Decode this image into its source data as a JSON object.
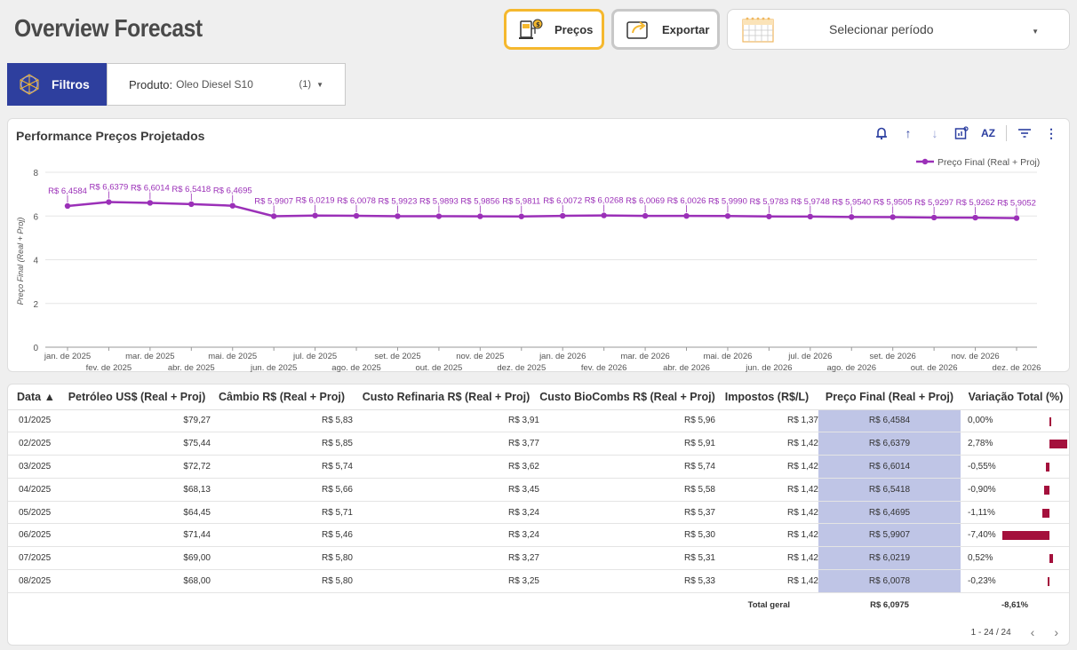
{
  "header": {
    "title": "Overview Forecast",
    "precos_label": "Preços",
    "exportar_label": "Exportar",
    "period_placeholder": "Selecionar período"
  },
  "filters": {
    "button_label": "Filtros",
    "product_label": "Produto:",
    "product_value": "Oleo Diesel S10",
    "product_count": "(1)"
  },
  "chart_card": {
    "title": "Performance Preços Projetados",
    "legend": "Preço Final (Real + Proj)"
  },
  "chart_data": {
    "type": "line",
    "title": "Performance Preços Projetados",
    "ylabel": "Preço Final (Real + Proj)",
    "ylim": [
      0,
      8
    ],
    "yticks": [
      0,
      2,
      4,
      6,
      8
    ],
    "x_top": [
      "jan. de 2025",
      "mar. de 2025",
      "mai. de 2025",
      "jul. de 2025",
      "set. de 2025",
      "nov. de 2025",
      "jan. de 2026",
      "mar. de 2026",
      "mai. de 2026",
      "jul. de 2026",
      "set. de 2026",
      "nov. de 2026"
    ],
    "x_bottom": [
      "fev. de 2025",
      "abr. de 2025",
      "jun. de 2025",
      "ago. de 2025",
      "out. de 2025",
      "dez. de 2025",
      "fev. de 2026",
      "abr. de 2026",
      "jun. de 2026",
      "ago. de 2026",
      "out. de 2026",
      "dez. de 2026"
    ],
    "series": [
      {
        "name": "Preço Final (Real + Proj)",
        "color": "#9b30b8",
        "values": [
          6.4584,
          6.6379,
          6.6014,
          6.5418,
          6.4695,
          5.9907,
          6.0219,
          6.0078,
          5.9923,
          5.9893,
          5.9856,
          5.9811,
          6.0072,
          6.0268,
          6.0069,
          6.0026,
          5.999,
          5.9783,
          5.9748,
          5.954,
          5.9505,
          5.9297,
          5.9262,
          5.9052
        ],
        "labels": [
          "R$ 6,4584",
          "R$ 6,6379",
          "R$ 6,6014",
          "R$ 6,5418",
          "R$ 6,4695",
          "R$ 5,9907",
          "R$ 6,0219",
          "R$ 6,0078",
          "R$ 5,9923",
          "R$ 5,9893",
          "R$ 5,9856",
          "R$ 5,9811",
          "R$ 6,0072",
          "R$ 6,0268",
          "R$ 6,0069",
          "R$ 6,0026",
          "R$ 5,9990",
          "R$ 5,9783",
          "R$ 5,9748",
          "R$ 5,9540",
          "R$ 5,9505",
          "R$ 5,9297",
          "R$ 5,9262",
          "R$ 5,9052"
        ]
      }
    ]
  },
  "table": {
    "headers": [
      "Data ▲",
      "Petróleo US$ (Real + Proj)",
      "Câmbio R$ (Real + Proj)",
      "Custo Refinaria R$ (Real + Proj)",
      "Custo BioCombs R$ (Real + Proj)",
      "Impostos (R$/L)",
      "Preço Final (Real + Proj)",
      "Variação Total (%)"
    ],
    "rows": [
      {
        "data": "01/2025",
        "petroleo": "$79,27",
        "cambio": "R$ 5,83",
        "refinaria": "R$ 3,91",
        "biocombs": "R$ 5,96",
        "impostos": "R$ 1,37",
        "preco": "R$ 6,4584",
        "variacao": "0,00%",
        "var_value": 0.0
      },
      {
        "data": "02/2025",
        "petroleo": "$75,44",
        "cambio": "R$ 5,85",
        "refinaria": "R$ 3,77",
        "biocombs": "R$ 5,91",
        "impostos": "R$ 1,42",
        "preco": "R$ 6,6379",
        "variacao": "2,78%",
        "var_value": 2.78
      },
      {
        "data": "03/2025",
        "petroleo": "$72,72",
        "cambio": "R$ 5,74",
        "refinaria": "R$ 3,62",
        "biocombs": "R$ 5,74",
        "impostos": "R$ 1,42",
        "preco": "R$ 6,6014",
        "variacao": "-0,55%",
        "var_value": -0.55
      },
      {
        "data": "04/2025",
        "petroleo": "$68,13",
        "cambio": "R$ 5,66",
        "refinaria": "R$ 3,45",
        "biocombs": "R$ 5,58",
        "impostos": "R$ 1,42",
        "preco": "R$ 6,5418",
        "variacao": "-0,90%",
        "var_value": -0.9
      },
      {
        "data": "05/2025",
        "petroleo": "$64,45",
        "cambio": "R$ 5,71",
        "refinaria": "R$ 3,24",
        "biocombs": "R$ 5,37",
        "impostos": "R$ 1,42",
        "preco": "R$ 6,4695",
        "variacao": "-1,11%",
        "var_value": -1.11
      },
      {
        "data": "06/2025",
        "petroleo": "$71,44",
        "cambio": "R$ 5,46",
        "refinaria": "R$ 3,24",
        "biocombs": "R$ 5,30",
        "impostos": "R$ 1,42",
        "preco": "R$ 5,9907",
        "variacao": "-7,40%",
        "var_value": -7.4
      },
      {
        "data": "07/2025",
        "petroleo": "$69,00",
        "cambio": "R$ 5,80",
        "refinaria": "R$ 3,27",
        "biocombs": "R$ 5,31",
        "impostos": "R$ 1,42",
        "preco": "R$ 6,0219",
        "variacao": "0,52%",
        "var_value": 0.52
      },
      {
        "data": "08/2025",
        "petroleo": "$68,00",
        "cambio": "R$ 5,80",
        "refinaria": "R$ 3,25",
        "biocombs": "R$ 5,33",
        "impostos": "R$ 1,42",
        "preco": "R$ 6,0078",
        "variacao": "-0,23%",
        "var_value": -0.23
      }
    ],
    "totals": {
      "label": "Total geral",
      "preco": "R$ 6,0975",
      "variacao": "-8,61%"
    },
    "pagination": "1 - 24 / 24"
  },
  "colors": {
    "accent": "#2e3f9e",
    "series": "#9b30b8",
    "highlight": "#bfc5e6",
    "bar": "#a4103c",
    "precos_border": "#f5b82e"
  }
}
